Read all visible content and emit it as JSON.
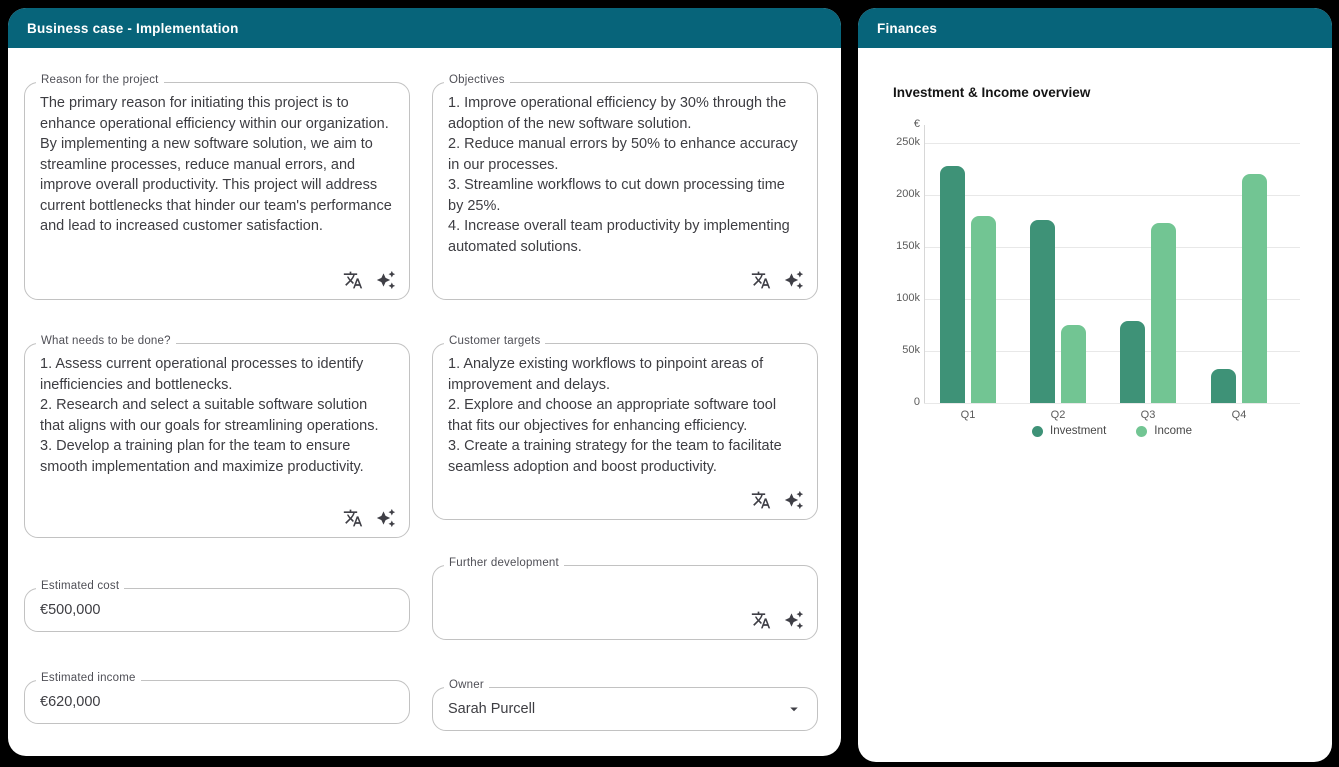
{
  "left_panel": {
    "header": "Business case - Implementation",
    "fields": {
      "reason": {
        "label": "Reason for the project",
        "value": "The primary reason for initiating this project is to enhance operational efficiency within our organization. By implementing a new software solution, we aim to streamline processes, reduce manual errors, and improve overall productivity. This project will address current bottlenecks that hinder our team's performance and lead to increased customer satisfaction."
      },
      "objectives": {
        "label": "Objectives",
        "value": "1. Improve operational efficiency by 30% through the adoption of the new software solution.\n2. Reduce manual errors by 50% to enhance accuracy in our processes.\n3. Streamline workflows to cut down processing time by 25%.\n4. Increase overall team productivity by implementing automated solutions."
      },
      "what_needs_done": {
        "label": "What needs to be done?",
        "value": "1. Assess current operational processes to identify inefficiencies and bottlenecks.\n2. Research and select a suitable software solution that aligns with our goals for streamlining operations.\n3. Develop a training plan for the team to ensure smooth implementation and maximize productivity."
      },
      "customer_targets": {
        "label": "Customer targets",
        "value": "1. Analyze existing workflows to pinpoint areas of improvement and delays.\n2. Explore and choose an appropriate software tool that fits our objectives for enhancing efficiency.\n3. Create a training strategy for the team to facilitate seamless adoption and boost productivity."
      },
      "estimated_cost": {
        "label": "Estimated cost",
        "value": "€500,000"
      },
      "further_development": {
        "label": "Further development",
        "value": ""
      },
      "estimated_income": {
        "label": "Estimated income",
        "value": "€620,000"
      },
      "owner": {
        "label": "Owner",
        "value": "Sarah Purcell"
      }
    },
    "icon_names": {
      "translate": "translate-icon",
      "sparkles": "ai-sparkles-icon"
    }
  },
  "right_panel": {
    "header": "Finances"
  },
  "chart_data": {
    "type": "bar",
    "title": "Investment & Income overview",
    "categories": [
      "Q1",
      "Q2",
      "Q3",
      "Q4"
    ],
    "series": [
      {
        "name": "Investment",
        "color": "#3E9277",
        "values": [
          228000,
          176000,
          79000,
          33000
        ]
      },
      {
        "name": "Income",
        "color": "#72C593",
        "values": [
          180000,
          75000,
          173000,
          220000
        ]
      }
    ],
    "xlabel": "",
    "ylabel": "€",
    "ylim": [
      0,
      250000
    ],
    "ytick_labels": [
      "250k",
      "200k",
      "150k",
      "100k",
      "50k",
      "0"
    ],
    "ytick_values": [
      250000,
      200000,
      150000,
      100000,
      50000,
      0
    ],
    "grid": true,
    "legend_position": "bottom"
  },
  "colors": {
    "page_bg": "#000000",
    "card_bg": "#FFFFFF",
    "header_bg": "#07647A",
    "investment": "#3E9277",
    "income": "#72C593"
  }
}
